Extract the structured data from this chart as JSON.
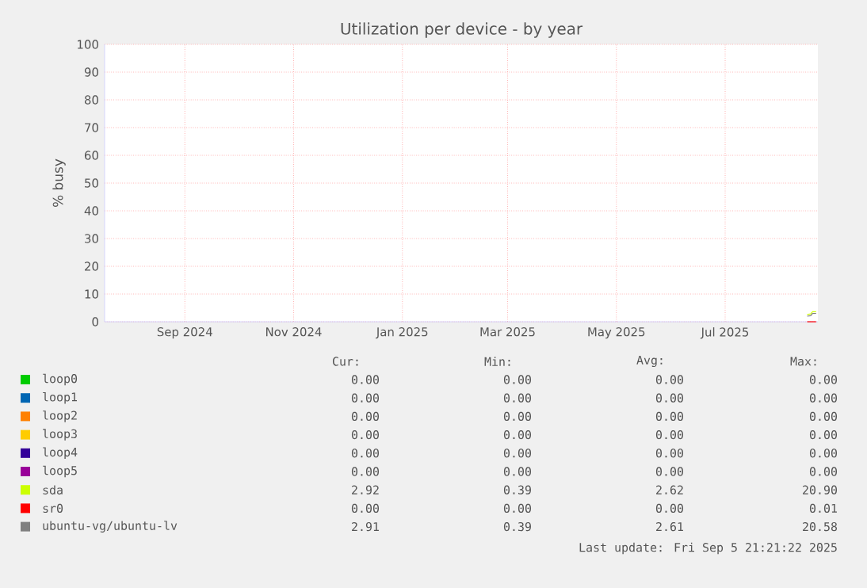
{
  "chart_data": {
    "type": "line",
    "title": "Utilization per device - by year",
    "ylabel": "% busy",
    "xlim": [
      "2024-08-02",
      "2025-09-06"
    ],
    "xticks": [
      {
        "value": "2024-09-16",
        "label": "Sep 2024"
      },
      {
        "value": "2024-11-16",
        "label": "Nov 2024"
      },
      {
        "value": "2025-01-16",
        "label": "Jan 2025"
      },
      {
        "value": "2025-03-16",
        "label": "Mar 2025"
      },
      {
        "value": "2025-05-16",
        "label": "May 2025"
      },
      {
        "value": "2025-07-16",
        "label": "Jul 2025"
      }
    ],
    "ylim": [
      0,
      100
    ],
    "yticks": [
      0,
      10,
      20,
      30,
      40,
      50,
      60,
      70,
      80,
      90,
      100
    ],
    "grid": true,
    "legend": "bottom",
    "line_style": "solid",
    "marker": "none",
    "series": [
      {
        "name": "loop0",
        "color": "#00cc00"
      },
      {
        "name": "loop1",
        "color": "#0066b3"
      },
      {
        "name": "loop2",
        "color": "#ff8000"
      },
      {
        "name": "loop3",
        "color": "#ffcc00"
      },
      {
        "name": "loop4",
        "color": "#330099"
      },
      {
        "name": "loop5",
        "color": "#990099"
      },
      {
        "name": "sda",
        "color": "#ccff00",
        "x": [
          "2025-08-31",
          "2025-09-02",
          "2025-09-03",
          "2025-09-05"
        ],
        "values": [
          2.6,
          2.8,
          3.6,
          3.6
        ]
      },
      {
        "name": "sr0",
        "color": "#ff0000",
        "x": [
          "2025-08-31",
          "2025-09-05"
        ],
        "values": [
          0,
          0
        ]
      },
      {
        "name": "ubuntu-vg/ubuntu-lv",
        "color": "#808080",
        "x": [
          "2025-08-31",
          "2025-09-02",
          "2025-09-03",
          "2025-09-05"
        ],
        "values": [
          2,
          2.2,
          3,
          3
        ]
      }
    ],
    "annotations": [
      "Cur:",
      "Min:",
      "Avg:",
      "Max:",
      "0.00",
      "0.00",
      "0.00",
      "0.00",
      "0.00",
      "0.00",
      "0.00",
      "0.00",
      "0.00",
      "0.00",
      "0.00",
      "0.00",
      "0.00",
      "0.00",
      "0.00",
      "0.00",
      "0.00",
      "0.00",
      "0.00",
      "0.00",
      "0.00",
      "0.00",
      "0.00",
      "0.00",
      "2.92",
      "0.39",
      "2.62",
      "20.90",
      "0.00",
      "0.00",
      "0.00",
      "0.01",
      "2.91",
      "0.39",
      "2.61",
      "20.58",
      "Last update: Fri Sep  5 21:21:22 2025"
    ]
  }
}
